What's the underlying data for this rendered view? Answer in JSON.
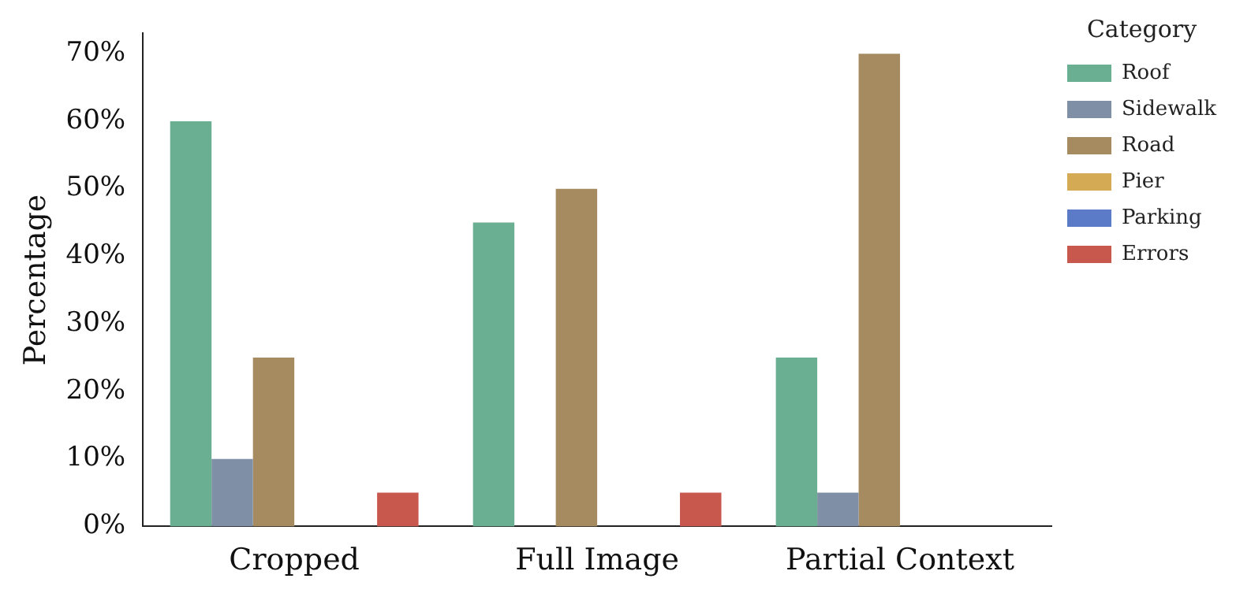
{
  "chart_data": {
    "type": "bar",
    "ylabel": "Percentage",
    "legend_title": "Category",
    "categories": [
      "Cropped",
      "Full Image",
      "Partial Context"
    ],
    "series": [
      {
        "name": "Roof",
        "color": "#6aaf92",
        "values": [
          60,
          45,
          25
        ]
      },
      {
        "name": "Sidewalk",
        "color": "#7f8fa6",
        "values": [
          10,
          0,
          5
        ]
      },
      {
        "name": "Road",
        "color": "#a58b5f",
        "values": [
          25,
          50,
          70
        ]
      },
      {
        "name": "Pier",
        "color": "#d4aa55",
        "values": [
          0,
          0,
          0
        ]
      },
      {
        "name": "Parking",
        "color": "#5b7bc8",
        "values": [
          0,
          0,
          0
        ]
      },
      {
        "name": "Errors",
        "color": "#c8584e",
        "values": [
          5,
          5,
          0
        ]
      }
    ],
    "ylim": [
      0,
      73
    ],
    "yticks": [
      {
        "value": 0,
        "label": "0%"
      },
      {
        "value": 10,
        "label": "10%"
      },
      {
        "value": 20,
        "label": "20%"
      },
      {
        "value": 30,
        "label": "30%"
      },
      {
        "value": 40,
        "label": "40%"
      },
      {
        "value": 50,
        "label": "50%"
      },
      {
        "value": 60,
        "label": "60%"
      },
      {
        "value": 70,
        "label": "70%"
      }
    ],
    "grid": false,
    "legend": "right"
  }
}
